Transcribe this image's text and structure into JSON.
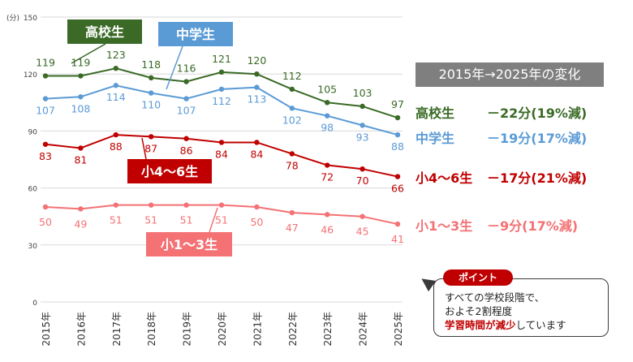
{
  "chart_data": {
    "type": "line",
    "ylabel": "(分)",
    "ylim": [
      0,
      150
    ],
    "yticks": [
      0,
      30,
      60,
      90,
      120,
      150
    ],
    "categories": [
      "2015年",
      "2016年",
      "2017年",
      "2018年",
      "2019年",
      "2020年",
      "2021年",
      "2022年",
      "2023年",
      "2024年",
      "2025年"
    ],
    "series": [
      {
        "name": "高校生",
        "color": "#3a6a26",
        "values": [
          119,
          119,
          123,
          118,
          116,
          121,
          120,
          112,
          105,
          103,
          97
        ]
      },
      {
        "name": "中学生",
        "color": "#5b9bd5",
        "values": [
          107,
          108,
          114,
          110,
          107,
          112,
          113,
          102,
          98,
          93,
          88
        ]
      },
      {
        "name": "小4～6生",
        "color": "#c00000",
        "values": [
          83,
          81,
          88,
          87,
          86,
          84,
          84,
          78,
          72,
          70,
          66
        ]
      },
      {
        "name": "小1～3生",
        "color": "#f47174",
        "values": [
          50,
          49,
          51,
          51,
          51,
          51,
          50,
          47,
          46,
          45,
          41
        ]
      }
    ],
    "grid": true
  },
  "panel": {
    "title": "2015年→2025年の変化",
    "rows": [
      {
        "label": "高校生",
        "value": "－22分(19%減)",
        "color": "#3a6a26"
      },
      {
        "label": "中学生",
        "value": "－19分(17%減)",
        "color": "#5b9bd5"
      },
      {
        "label": "小4～6生",
        "value": "－17分(21%減)",
        "color": "#c00000"
      },
      {
        "label": "小1～3生",
        "value": "－9分(17%減)",
        "color": "#f47174"
      }
    ]
  },
  "point": {
    "badge": "ポイント",
    "line1": "すべての学校段階で、",
    "line2": "およそ2割程度",
    "line3_highlight": "学習時間が減少",
    "line3_rest": "しています"
  }
}
